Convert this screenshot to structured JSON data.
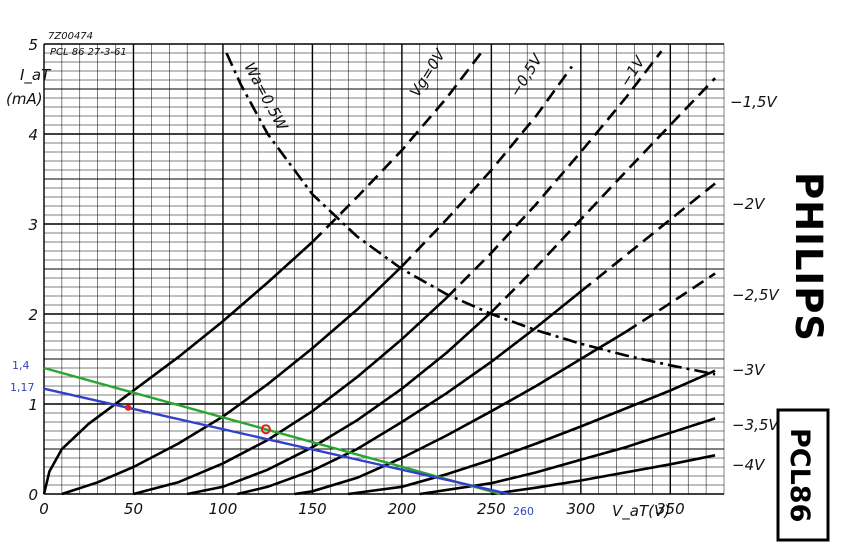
{
  "chart_data": {
    "type": "line",
    "header": {
      "code": "7Z00474",
      "ref": "PCL 86  27-3-61"
    },
    "ylabel": "I_aT",
    "yunit": "(mA)",
    "xlabel": "V_aT(V)",
    "xlim": [
      0,
      380
    ],
    "ylim": [
      0,
      5
    ],
    "x_ticks": [
      "0",
      "50",
      "100",
      "150",
      "200",
      "250",
      "300",
      "350"
    ],
    "x_tick_values": [
      0,
      50,
      100,
      150,
      200,
      250,
      300,
      350
    ],
    "y_ticks": [
      "0",
      "1",
      "2",
      "3",
      "4",
      "5"
    ],
    "y_tick_values": [
      0,
      1,
      2,
      3,
      4,
      5
    ],
    "grid": true,
    "series": [
      {
        "name": "Vg=0V",
        "label_text": "Vg=0V",
        "style": "solid-dashed",
        "dash_from": 160,
        "x": [
          0,
          3,
          10,
          25,
          50,
          75,
          100,
          125,
          150,
          175,
          200,
          225,
          245
        ],
        "y": [
          0,
          0.25,
          0.5,
          0.78,
          1.15,
          1.52,
          1.92,
          2.35,
          2.8,
          3.3,
          3.82,
          4.4,
          4.92
        ]
      },
      {
        "name": "-0,5V",
        "label_text": "−0,5V",
        "style": "solid-dashed",
        "dash_from": 200,
        "x": [
          10,
          30,
          50,
          75,
          100,
          125,
          150,
          175,
          200,
          225,
          250,
          275,
          295
        ],
        "y": [
          0,
          0.13,
          0.3,
          0.56,
          0.86,
          1.22,
          1.62,
          2.05,
          2.53,
          3.05,
          3.6,
          4.2,
          4.75
        ]
      },
      {
        "name": "-1V",
        "label_text": "−1V",
        "style": "solid-dashed",
        "dash_from": 230,
        "x": [
          50,
          75,
          100,
          125,
          150,
          175,
          200,
          225,
          250,
          275,
          300,
          325,
          345
        ],
        "y": [
          0,
          0.13,
          0.34,
          0.6,
          0.92,
          1.3,
          1.72,
          2.18,
          2.68,
          3.22,
          3.8,
          4.4,
          4.92
        ]
      },
      {
        "name": "-1,5V",
        "label_text": "−1,5V",
        "style": "solid-dashed",
        "dash_from": 268,
        "x": [
          80,
          100,
          125,
          150,
          175,
          200,
          225,
          250,
          275,
          300,
          325,
          350,
          375
        ],
        "y": [
          0,
          0.08,
          0.27,
          0.52,
          0.82,
          1.17,
          1.57,
          2.02,
          2.52,
          3.05,
          3.58,
          4.1,
          4.62
        ]
      },
      {
        "name": "-2V",
        "label_text": "−2V",
        "style": "solid-dashed",
        "dash_from": 300,
        "x": [
          108,
          125,
          150,
          175,
          200,
          225,
          250,
          275,
          300,
          325,
          350,
          375
        ],
        "y": [
          0,
          0.08,
          0.26,
          0.5,
          0.8,
          1.12,
          1.47,
          1.85,
          2.25,
          2.65,
          3.05,
          3.45
        ]
      },
      {
        "name": "-2,5V",
        "label_text": "−2,5V",
        "style": "solid-dashed",
        "dash_from": 330,
        "x": [
          140,
          150,
          175,
          200,
          225,
          250,
          275,
          300,
          325,
          350,
          375
        ],
        "y": [
          0,
          0.03,
          0.18,
          0.4,
          0.65,
          0.92,
          1.2,
          1.5,
          1.8,
          2.12,
          2.45
        ]
      },
      {
        "name": "-3V",
        "label_text": "−3V",
        "style": "solid",
        "x": [
          170,
          200,
          225,
          250,
          275,
          300,
          325,
          350,
          375
        ],
        "y": [
          0,
          0.08,
          0.22,
          0.38,
          0.56,
          0.75,
          0.95,
          1.15,
          1.37
        ]
      },
      {
        "name": "-3,5V",
        "label_text": "−3,5V",
        "style": "solid",
        "x": [
          210,
          250,
          275,
          300,
          325,
          350,
          375
        ],
        "y": [
          0,
          0.12,
          0.24,
          0.38,
          0.52,
          0.68,
          0.84
        ]
      },
      {
        "name": "-4V",
        "label_text": "−4V",
        "style": "solid",
        "x": [
          250,
          275,
          300,
          325,
          350,
          375
        ],
        "y": [
          0,
          0.07,
          0.15,
          0.24,
          0.33,
          0.43
        ]
      },
      {
        "name": "Wa=0,5W",
        "label_text": "Wa=0,5W",
        "style": "dashdot",
        "x": [
          102,
          110,
          125,
          150,
          175,
          200,
          225,
          250,
          275,
          300,
          325,
          350,
          375
        ],
        "y": [
          4.9,
          4.55,
          4.0,
          3.33,
          2.86,
          2.5,
          2.22,
          2.0,
          1.82,
          1.67,
          1.54,
          1.43,
          1.33
        ]
      }
    ],
    "load_lines": [
      {
        "name": "green",
        "color": "#2aa532",
        "x": [
          0,
          255
        ],
        "y": [
          1.4,
          0
        ]
      },
      {
        "name": "blue",
        "color": "#3340cc",
        "x": [
          0,
          260
        ],
        "y": [
          1.17,
          0
        ]
      }
    ],
    "annotations": {
      "y_1_4": "1,4",
      "y_1_17": "1,17",
      "x_260": "260",
      "annot_color": "#3344bb"
    },
    "markers": [
      {
        "kind": "dot",
        "color": "#e02020",
        "x": 47,
        "y": 0.96
      },
      {
        "kind": "ring",
        "color": "#e02020",
        "x": 124,
        "y": 0.72
      }
    ]
  },
  "branding": {
    "brand": "PHILIPS",
    "model": "PCL86"
  }
}
